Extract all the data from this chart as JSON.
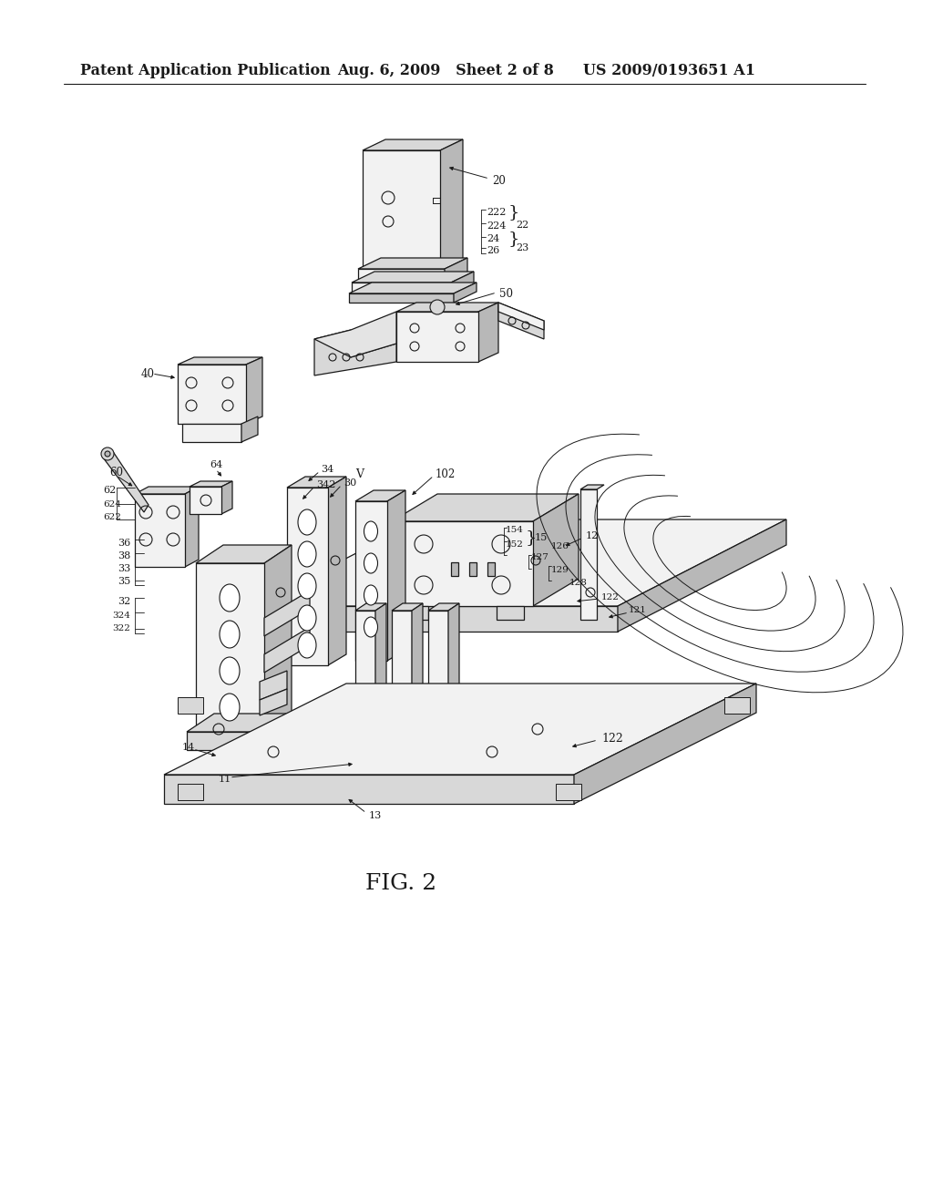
{
  "bg_color": "#ffffff",
  "header_left": "Patent Application Publication",
  "header_mid": "Aug. 6, 2009   Sheet 2 of 8",
  "header_right": "US 2009/0193651 A1",
  "fig_label": "FIG. 2",
  "fig_label_fontsize": 18,
  "header_fontsize": 11.5,
  "line_color": "#1a1a1a",
  "fill_light": "#f2f2f2",
  "fill_mid": "#d8d8d8",
  "fill_dark": "#b8b8b8"
}
